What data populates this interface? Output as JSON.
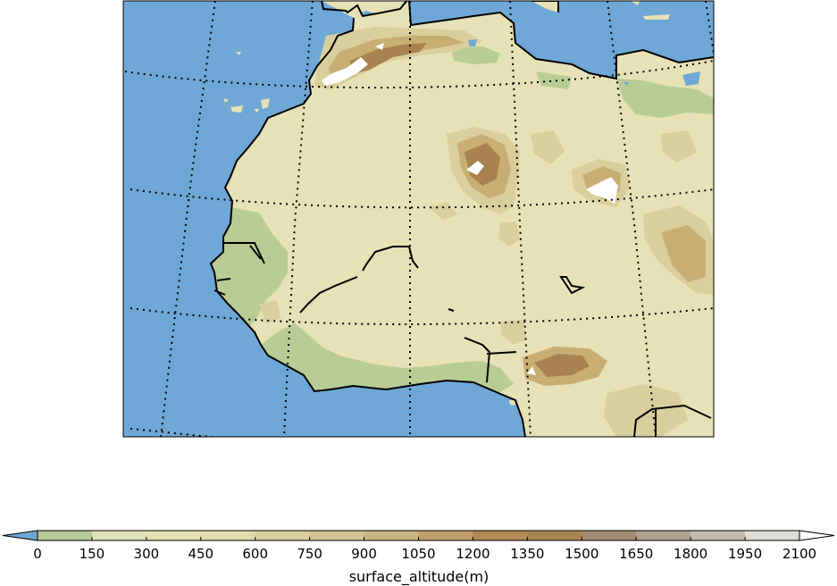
{
  "map": {
    "colors": {
      "ocean": "#6fa8d6",
      "land": "#e6e1b6",
      "lowland": "#b9cc96",
      "contour_low": "#d9cf9c",
      "contour_mid": "#c9ae74",
      "contour_high": "#a8834f",
      "peak": "#ffffff",
      "border": "#000000"
    }
  },
  "colorbar": {
    "label": "surface_altitude(m)",
    "ticks": [
      "0",
      "150",
      "300",
      "450",
      "600",
      "750",
      "900",
      "1050",
      "1200",
      "1350",
      "1500",
      "1650",
      "1800",
      "1950",
      "2100"
    ],
    "colors": [
      "#b7c995",
      "#dfe2b4",
      "#e3e0b1",
      "#e3dbad",
      "#d9cfa0",
      "#d3c492",
      "#c9b47e",
      "#bf9f68",
      "#b38955",
      "#a98451",
      "#a28b71",
      "#b0a290",
      "#c3bcae",
      "#dedcd6"
    ],
    "under_color": "#6fa8d6",
    "over_color": "#ffffff"
  }
}
